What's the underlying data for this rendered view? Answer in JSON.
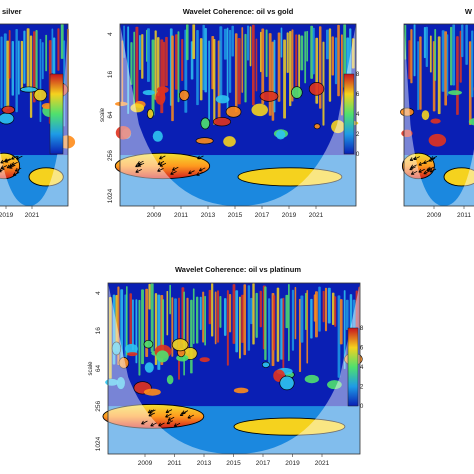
{
  "colors": {
    "low": "#0a1fb4",
    "high": "#c8141e",
    "cone": "#ffffff",
    "contour": "#000000"
  },
  "chart_data": [
    {
      "type": "heatmap",
      "title": "Wavelet Coherence: oil vs silver",
      "title_visible": "silver",
      "xticks": [
        "2019",
        "2021"
      ],
      "ylabel": "",
      "yticks": [],
      "legend_ticks": [],
      "legend_placement": "right"
    },
    {
      "type": "heatmap",
      "title": "Wavelet Coherence: oil vs gold",
      "xticks": [
        "2009",
        "2011",
        "2013",
        "2015",
        "2017",
        "2019",
        "2021"
      ],
      "ylabel": "scale",
      "yticks": [
        "4",
        "16",
        "64",
        "256",
        "1024"
      ],
      "legend_ticks": [
        "0",
        "2",
        "4",
        "6",
        "8"
      ],
      "legend_placement": "right"
    },
    {
      "type": "heatmap",
      "title": "Wavelet Coherence: oil vs ...",
      "title_visible": "W",
      "xticks": [
        "2009",
        "2011"
      ],
      "ylabel": "",
      "yticks": [],
      "legend_ticks": [],
      "legend_placement": "right"
    },
    {
      "type": "heatmap",
      "title": "Wavelet Coherence: oil vs platinum",
      "xticks": [
        "2009",
        "2011",
        "2013",
        "2015",
        "2017",
        "2019",
        "2021"
      ],
      "ylabel": "scale",
      "yticks": [
        "4",
        "16",
        "64",
        "256",
        "1024"
      ],
      "legend_ticks": [
        "0",
        "2",
        "4",
        "6",
        "8"
      ],
      "legend_placement": "right"
    }
  ]
}
